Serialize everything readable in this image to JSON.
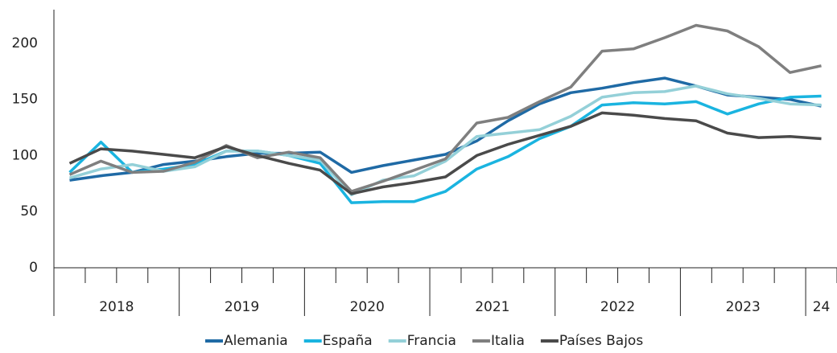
{
  "chart_data": {
    "type": "line",
    "categories": [
      null,
      null,
      null,
      null,
      null,
      null,
      null,
      null,
      null,
      null,
      null,
      null,
      null,
      null,
      null,
      null,
      null,
      null,
      null,
      null,
      null,
      null,
      null,
      null,
      null
    ],
    "year_labels": [
      "2018",
      "2019",
      "2020",
      "2021",
      "2022",
      "2023",
      "24"
    ],
    "ylim": [
      0,
      230
    ],
    "yticks": [
      0,
      50,
      100,
      150,
      200
    ],
    "grid": false,
    "legend": "bottom",
    "series": [
      {
        "name": "Alemania",
        "color": "#1f6aa5",
        "values": [
          78,
          82,
          85,
          92,
          95,
          99,
          102,
          102,
          103,
          85,
          91,
          96,
          101,
          113,
          131,
          146,
          156,
          160,
          165,
          169,
          162,
          154,
          152,
          150,
          144
        ]
      },
      {
        "name": "España",
        "color": "#1ab4e0",
        "values": [
          85,
          112,
          85,
          88,
          92,
          104,
          104,
          100,
          93,
          58,
          59,
          59,
          68,
          88,
          99,
          115,
          126,
          145,
          147,
          146,
          148,
          137,
          146,
          152,
          153
        ]
      },
      {
        "name": "Francia",
        "color": "#94d0d8",
        "values": [
          80,
          88,
          92,
          86,
          90,
          104,
          104,
          100,
          96,
          65,
          78,
          82,
          95,
          117,
          120,
          123,
          135,
          152,
          156,
          157,
          162,
          155,
          151,
          146,
          145
        ]
      },
      {
        "name": "Italia",
        "color": "#7f7f7f",
        "values": [
          83,
          95,
          85,
          86,
          94,
          109,
          98,
          103,
          98,
          68,
          77,
          87,
          97,
          129,
          134,
          148,
          161,
          193,
          195,
          205,
          216,
          211,
          197,
          174,
          180
        ]
      },
      {
        "name": "Países Bajos",
        "color": "#4a4a4a",
        "values": [
          93,
          106,
          104,
          101,
          98,
          108,
          100,
          93,
          87,
          66,
          72,
          76,
          81,
          100,
          110,
          118,
          126,
          138,
          136,
          133,
          131,
          120,
          116,
          117,
          115
        ]
      }
    ]
  }
}
